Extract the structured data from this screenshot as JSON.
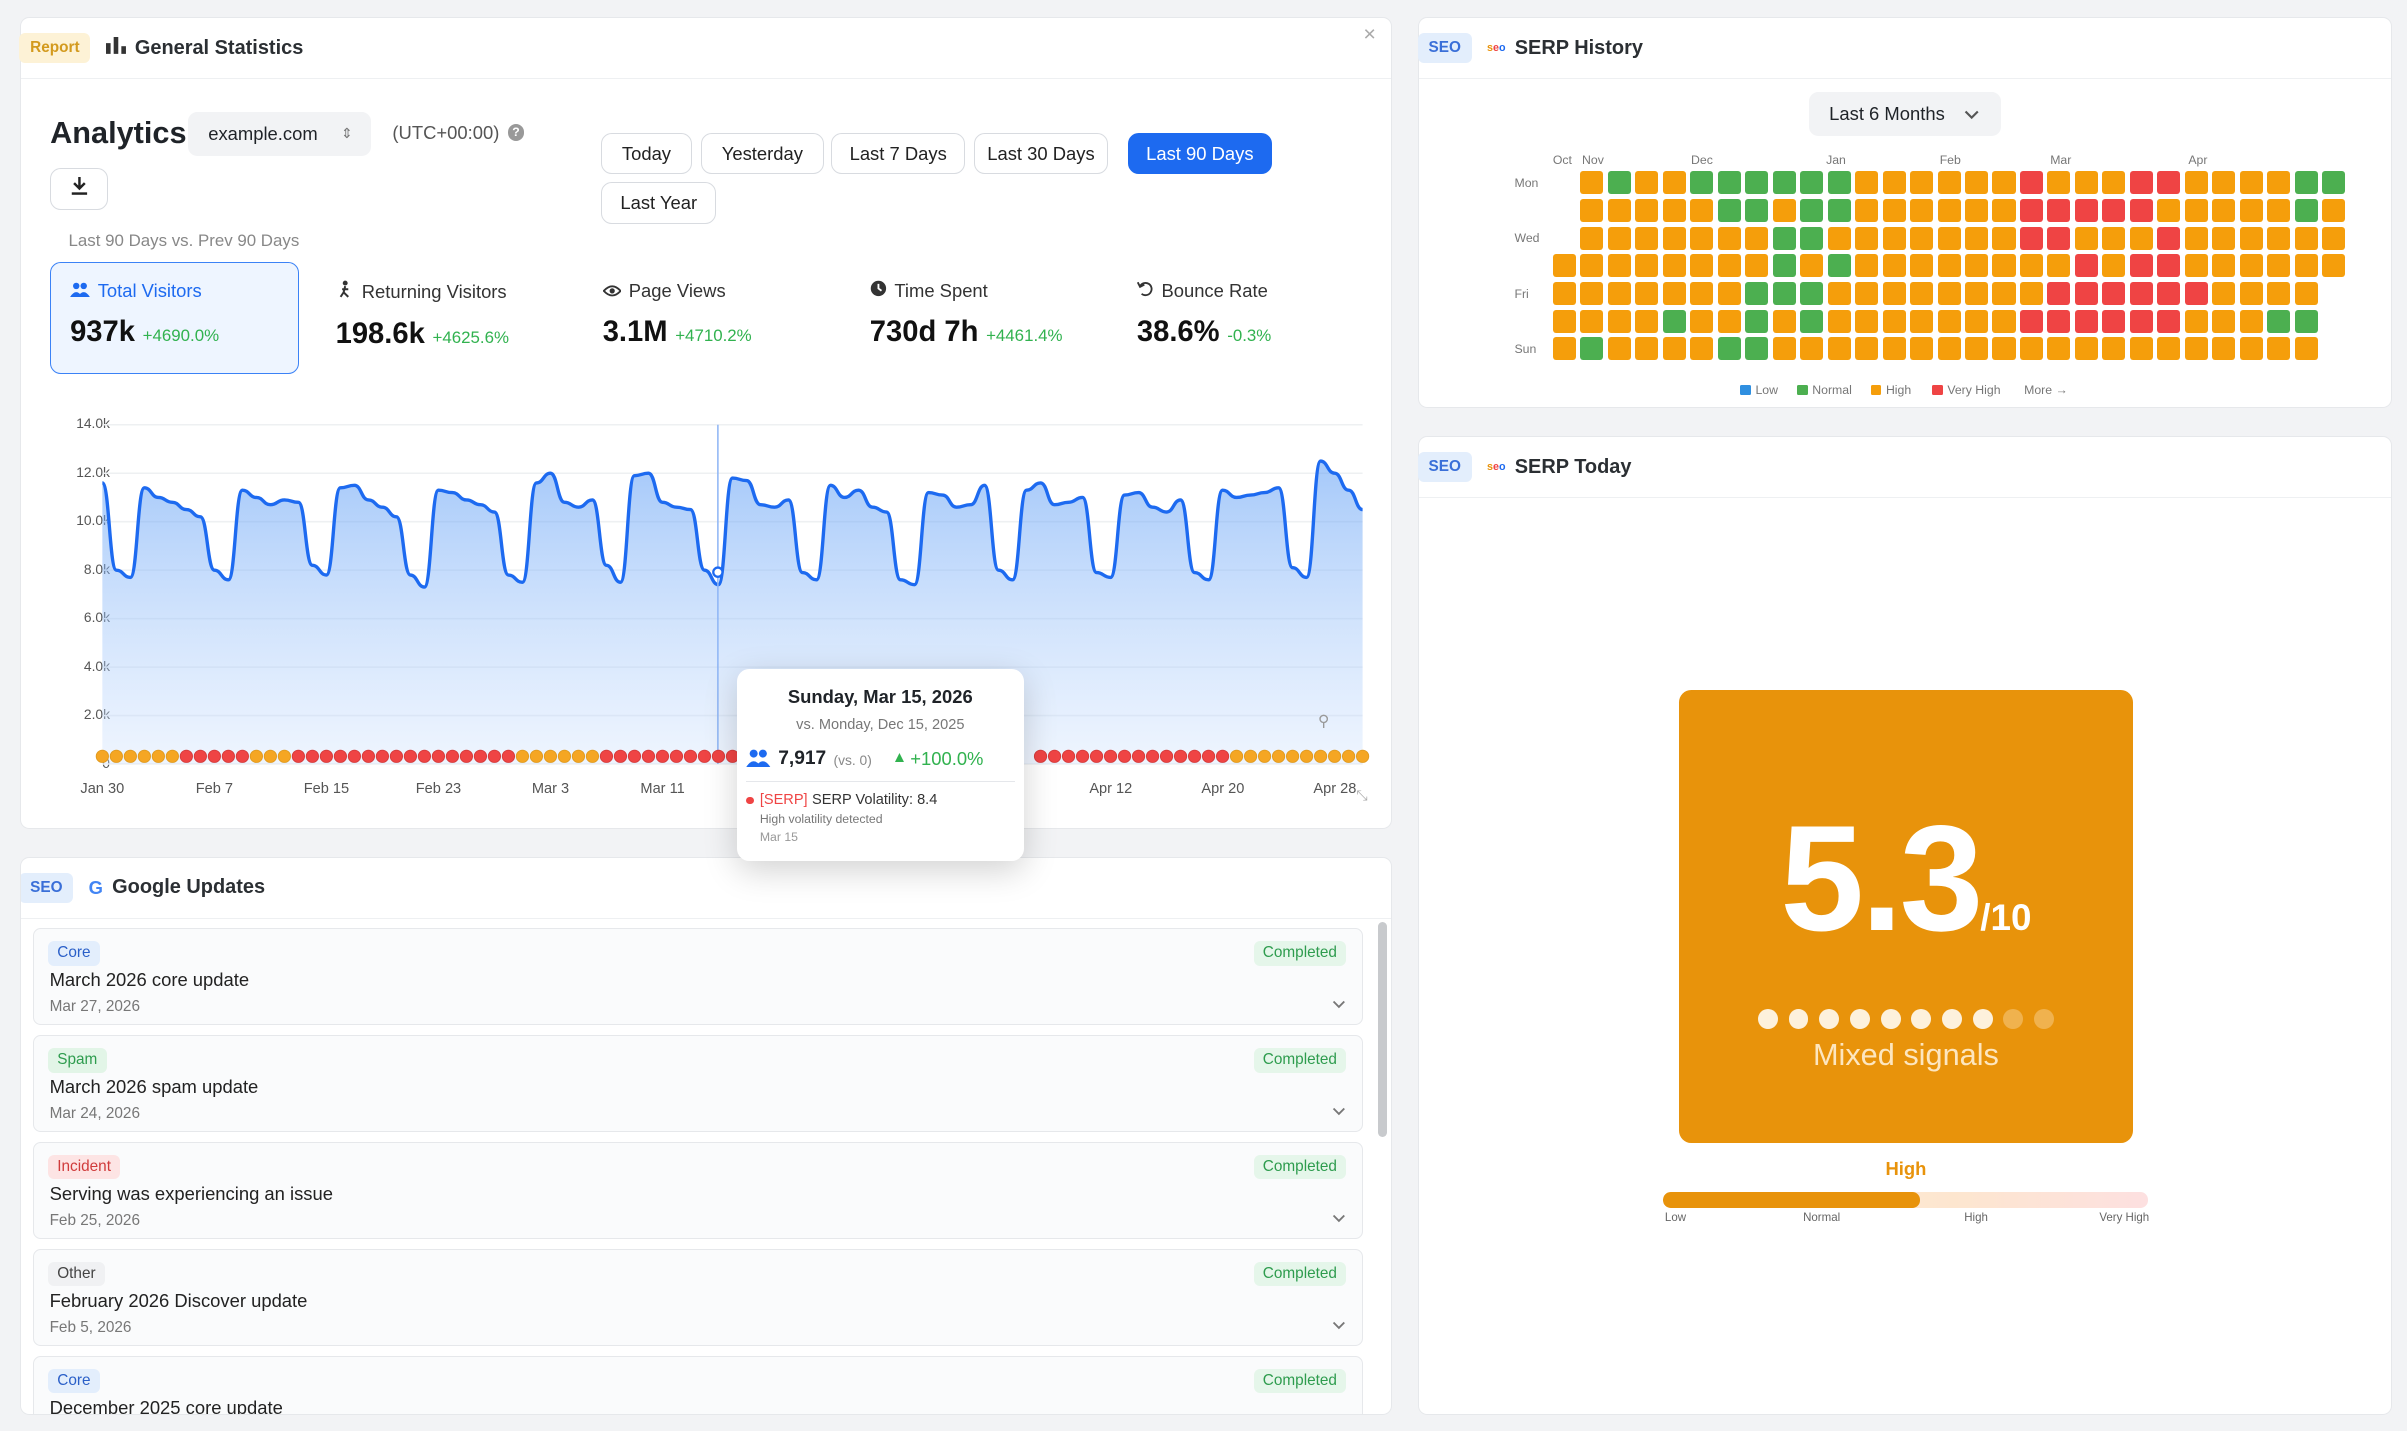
{
  "general": {
    "tag": "Report",
    "title": "General Statistics",
    "close": "×"
  },
  "analytics": {
    "title": "Analytics",
    "domain": "example.com",
    "domain_chev": "⌃⌄",
    "tz": "(UTC+00:00)",
    "tz_help": "?",
    "download_icon": "⤓",
    "compare": "Last 90 Days vs. Prev 90 Days"
  },
  "ranges": [
    "Today",
    "Yesterday",
    "Last 7 Days",
    "Last 30 Days",
    "Last 90 Days",
    "Last Year"
  ],
  "active_range": "Last 90 Days",
  "metrics": [
    {
      "label": "Total Visitors",
      "value": "937k",
      "delta": "+4690.0%",
      "icon": "users-icon"
    },
    {
      "label": "Returning Visitors",
      "value": "198.6k",
      "delta": "+4625.6%",
      "icon": "walker-icon"
    },
    {
      "label": "Page Views",
      "value": "3.1M",
      "delta": "+4710.2%",
      "icon": "eye-icon"
    },
    {
      "label": "Time Spent",
      "value": "730d 7h",
      "delta": "+4461.4%",
      "icon": "clock-icon"
    },
    {
      "label": "Bounce Rate",
      "value": "38.6%",
      "delta": "-0.3%",
      "icon": "bounce-icon"
    }
  ],
  "colors": {
    "accent": "#1d6af0",
    "positive": "#31b24f",
    "low": "#2f8fe0",
    "normal": "#4caf50",
    "high": "#f59e0b",
    "very_high": "#ef4444",
    "gauge": "#e8930b"
  },
  "chart_data": {
    "type": "area",
    "series": [
      {
        "values": [
          11.6,
          8.0,
          7.7,
          11.4,
          11.0,
          10.8,
          10.5,
          10.2,
          8.0,
          7.6,
          11.3,
          11.0,
          10.7,
          10.9,
          10.8,
          8.2,
          7.8,
          11.4,
          11.5,
          10.9,
          10.6,
          10.2,
          7.8,
          7.3,
          11.3,
          11.2,
          10.9,
          10.7,
          10.4,
          7.8,
          7.5,
          11.6,
          12.0,
          10.8,
          10.6,
          10.9,
          8.2,
          7.5,
          11.9,
          12.0,
          10.8,
          10.6,
          10.5,
          8.0,
          7.4,
          11.8,
          11.7,
          10.7,
          10.6,
          10.9,
          7.9,
          7.6,
          11.5,
          11.0,
          11.3,
          10.6,
          10.4,
          7.6,
          7.4,
          11.2,
          11.1,
          10.6,
          10.7,
          11.5,
          8.0,
          7.6,
          11.3,
          11.6,
          10.7,
          10.8,
          11.0,
          7.9,
          7.7,
          11.1,
          11.2,
          10.6,
          10.4,
          10.9,
          7.9,
          7.6,
          11.3,
          11.0,
          11.1,
          11.2,
          11.4,
          8.1,
          7.7,
          12.5,
          12.0,
          11.3,
          10.5
        ]
      }
    ],
    "x_tick_labels": [
      "Jan 30",
      "Feb 7",
      "Feb 15",
      "Feb 23",
      "Mar 3",
      "Mar 11",
      "Apr 12",
      "Apr 20",
      "Apr 28"
    ],
    "y_tick_labels": [
      "14.0k",
      "12.0k",
      "10.0k",
      "8.0k",
      "6.0k",
      "4.0k",
      "2.0k",
      "0"
    ],
    "ylim": [
      0,
      14000
    ],
    "event_markers": "SERP volatility dots (red = very high, orange = high)",
    "grid": true
  },
  "tooltip": {
    "date": "Sunday, Mar 15, 2026",
    "vs": "vs. Monday, Dec 15, 2025",
    "value": "7,917",
    "vs_val": "(vs. 0)",
    "delta": "+100.0%",
    "serp_tag": "[SERP]",
    "serp_text": "SERP Volatility: 8.4",
    "serp_sub": "High volatility detected",
    "serp_date": "Mar 15"
  },
  "google": {
    "tag": "SEO",
    "title": "Google Updates",
    "updates": [
      {
        "type": "Core",
        "title": "March 2026 core update",
        "date": "Mar 27, 2026",
        "status": "Completed"
      },
      {
        "type": "Spam",
        "title": "March 2026 spam update",
        "date": "Mar 24, 2026",
        "status": "Completed"
      },
      {
        "type": "Incident",
        "title": "Serving was experiencing an issue",
        "date": "Feb 25, 2026",
        "status": "Completed"
      },
      {
        "type": "Other",
        "title": "February 2026 Discover update",
        "date": "Feb 5, 2026",
        "status": "Completed"
      },
      {
        "type": "Core",
        "title": "December 2025 core update",
        "date": "",
        "status": "Completed"
      }
    ]
  },
  "serp_history": {
    "tag": "SEO",
    "title": "SERP History",
    "range": "Last 6 Months",
    "months": [
      "Oct",
      "Nov",
      "Dec",
      "Jan",
      "Feb",
      "Mar",
      "Apr"
    ],
    "days": [
      "Mon",
      "Wed",
      "Fri",
      "Sun"
    ],
    "legend": [
      "Low",
      "Normal",
      "High",
      "Very High"
    ],
    "more": "More →",
    "grid_rows": [
      "XOGOOGGGGGGOOOOOOROOORROOOOGG",
      "XOOOOOGGOGGOOOOOORRRRROOOOOGO",
      "XOOOOOOOGGOOOOOOORROOOROOOOOO",
      "OOOOOOOOGOGOOOOOOOORORROOOOOO",
      "OOOOOOOGGGOOOOOOOORRRRRROOOOX",
      "OOOOGOOGOGOOOOOOORRRRRROOOGGX",
      "OGOOOOGGOOOOOOOOOOOOOOOOOOOOX"
    ]
  },
  "serp_today": {
    "tag": "SEO",
    "title": "SERP Today",
    "score": "5.3",
    "out_of": "/10",
    "dots_filled": 8,
    "dots_total": 10,
    "signal": "Mixed signals",
    "level": "High",
    "level_value": 0.53,
    "scale": [
      "Low",
      "Normal",
      "High",
      "Very High"
    ]
  }
}
